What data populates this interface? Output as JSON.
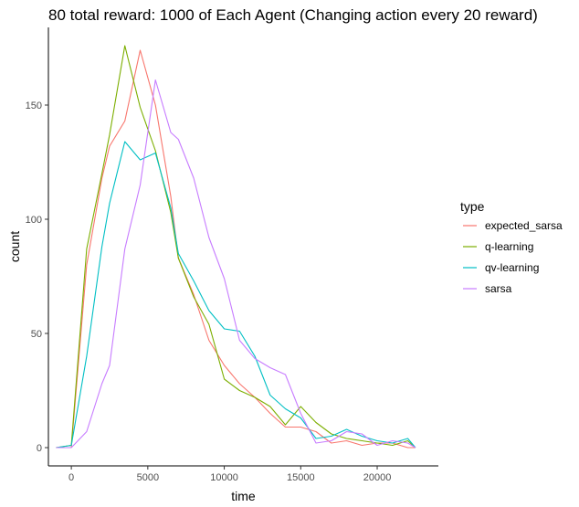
{
  "chart_data": {
    "type": "line",
    "title": "80 total reward: 1000 of Each Agent  (Changing action every 20 reward)",
    "xlabel": "time",
    "ylabel": "count",
    "xlim": [
      -1500,
      24000
    ],
    "ylim": [
      -8,
      184
    ],
    "xticks": [
      0,
      5000,
      10000,
      15000,
      20000
    ],
    "yticks": [
      0,
      50,
      100,
      150
    ],
    "grid": false,
    "legend": {
      "title": "type",
      "position": "right"
    },
    "series": [
      {
        "name": "expected_sarsa",
        "color": "#F8766D",
        "x": [
          -1000,
          0,
          1000,
          2000,
          2500,
          3500,
          4500,
          5500,
          6500,
          7000,
          8000,
          9000,
          10000,
          11000,
          12000,
          13000,
          14000,
          15000,
          16000,
          17000,
          18000,
          19000,
          20000,
          21000,
          22000,
          22500
        ],
        "y": [
          0,
          0,
          80,
          118,
          132,
          143,
          174,
          150,
          110,
          83,
          67,
          47,
          36,
          28,
          22,
          15,
          9,
          9,
          7,
          2,
          3,
          1,
          2,
          2,
          0,
          0
        ]
      },
      {
        "name": "q-learning",
        "color": "#7CAE00",
        "x": [
          -1000,
          0,
          1000,
          2000,
          2500,
          3500,
          4500,
          5500,
          6500,
          7000,
          8000,
          9000,
          10000,
          11000,
          12000,
          13000,
          14000,
          15000,
          16000,
          17000,
          18000,
          19000,
          20000,
          21000,
          22000,
          22500
        ],
        "y": [
          0,
          1,
          87,
          120,
          137,
          176,
          149,
          130,
          103,
          83,
          66,
          54,
          30,
          25,
          22,
          18,
          10,
          18,
          11,
          6,
          4,
          3,
          2,
          1,
          3,
          0
        ]
      },
      {
        "name": "qv-learning",
        "color": "#00BFC4",
        "x": [
          -1000,
          0,
          1000,
          2000,
          2500,
          3500,
          4500,
          5500,
          6500,
          7000,
          8000,
          9000,
          10000,
          11000,
          12000,
          13000,
          14000,
          15000,
          16000,
          17000,
          18000,
          19000,
          20000,
          21000,
          22000,
          22500
        ],
        "y": [
          0,
          1,
          40,
          88,
          107,
          134,
          126,
          129,
          105,
          85,
          73,
          60,
          52,
          51,
          40,
          23,
          17,
          13,
          4,
          5,
          8,
          5,
          3,
          2,
          4,
          0
        ]
      },
      {
        "name": "sarsa",
        "color": "#C77CFF",
        "x": [
          -1000,
          0,
          1000,
          2000,
          2500,
          3500,
          4500,
          5500,
          6500,
          7000,
          8000,
          9000,
          10000,
          11000,
          12000,
          13000,
          14000,
          15000,
          16000,
          17000,
          18000,
          19000,
          20000,
          21000,
          22000,
          22500
        ],
        "y": [
          0,
          0,
          7,
          28,
          36,
          87,
          115,
          161,
          138,
          135,
          118,
          92,
          74,
          47,
          39,
          35,
          32,
          15,
          2,
          3,
          7,
          6,
          1,
          3,
          2,
          0
        ]
      }
    ]
  }
}
